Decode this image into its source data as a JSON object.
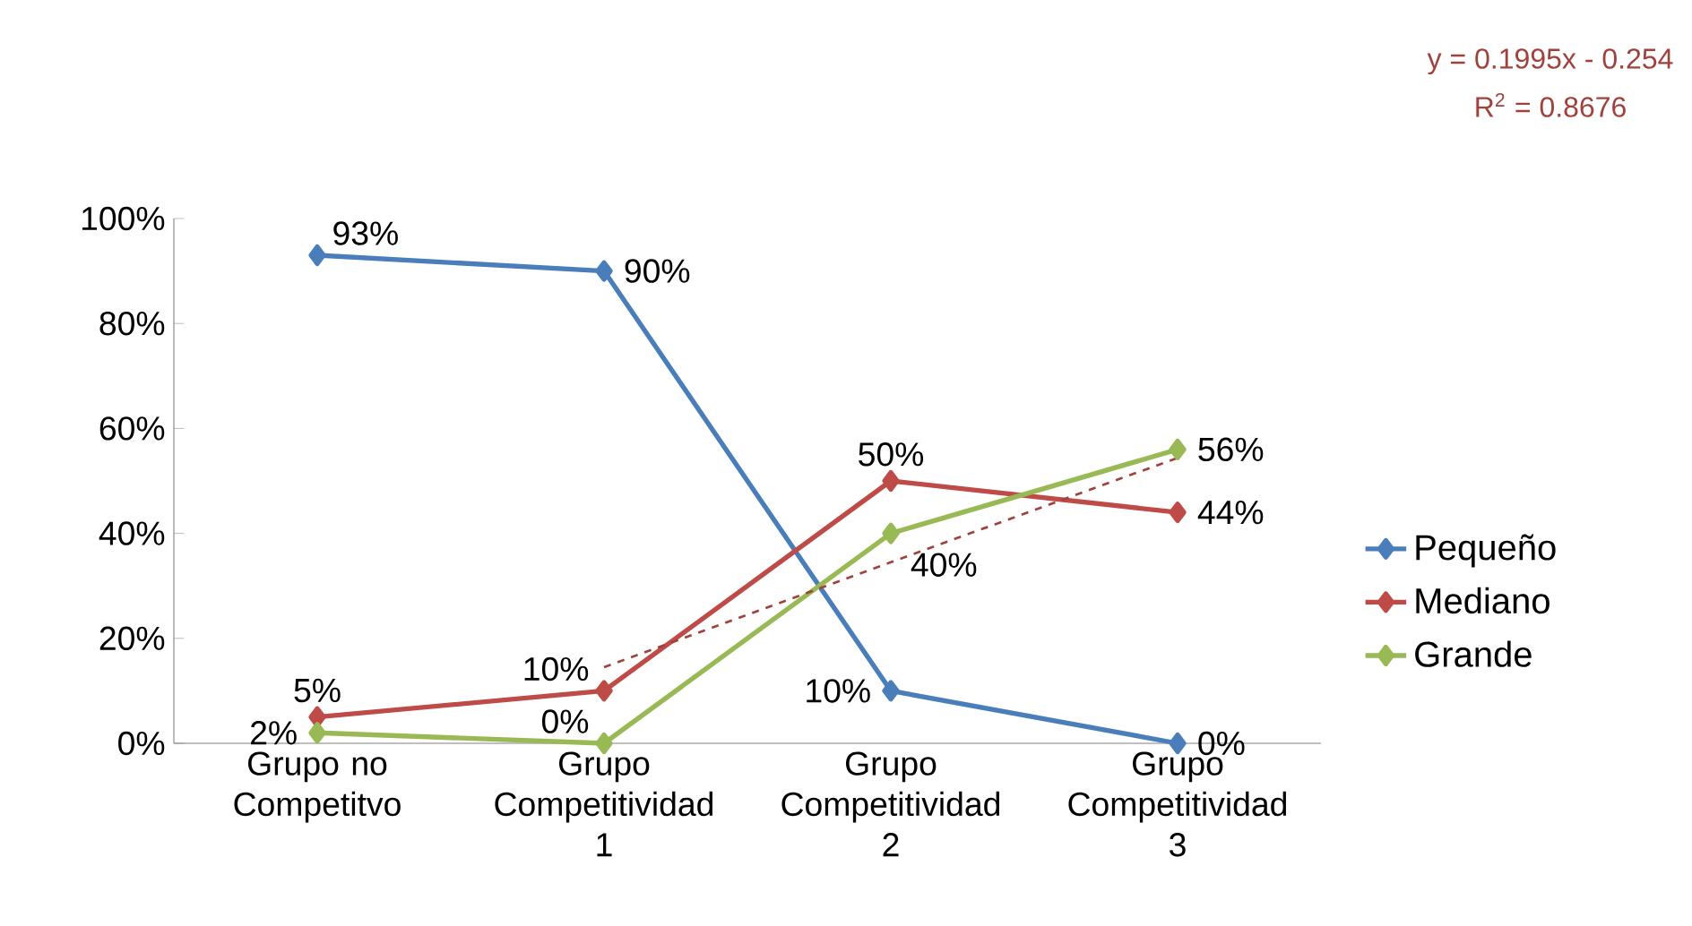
{
  "chart_data": {
    "type": "line",
    "categories": [
      "Grupo no Competitvo",
      "Grupo Competitividad 1",
      "Grupo Competitividad 2",
      "Grupo Competitividad 3"
    ],
    "series": [
      {
        "name": "Pequeño",
        "color": "#4a7ebb",
        "values": [
          93,
          90,
          10,
          0
        ],
        "value_labels": [
          "93%",
          "90%",
          "10%",
          "0%"
        ]
      },
      {
        "name": "Mediano",
        "color": "#be4b48",
        "values": [
          5,
          10,
          50,
          44
        ],
        "value_labels": [
          "5%",
          "10%",
          "50%",
          "44%"
        ]
      },
      {
        "name": "Grande",
        "color": "#98b954",
        "values": [
          2,
          0,
          40,
          56
        ],
        "value_labels": [
          "2%",
          "0%",
          "40%",
          "56%"
        ]
      },
      {
        "type": "line",
        "color": "#a0413c",
        "line_style": "dashed",
        "marker": "none",
        "values": [
          null,
          14.5,
          34.5,
          54.4
        ]
      }
    ],
    "ylim": [
      0,
      100
    ],
    "yticks": [
      {
        "value": 0,
        "label": "0%"
      },
      {
        "value": 20,
        "label": "20%"
      },
      {
        "value": 40,
        "label": "40%"
      },
      {
        "value": 60,
        "label": "60%"
      },
      {
        "value": 80,
        "label": "80%"
      },
      {
        "value": 100,
        "label": "100%"
      }
    ],
    "marker": "diamond",
    "line_style": "solid",
    "grid": false,
    "legend": "right",
    "annotations": [
      "y = 0.1995x - 0.254",
      "R$^{2}$ = 0.8676"
    ]
  }
}
